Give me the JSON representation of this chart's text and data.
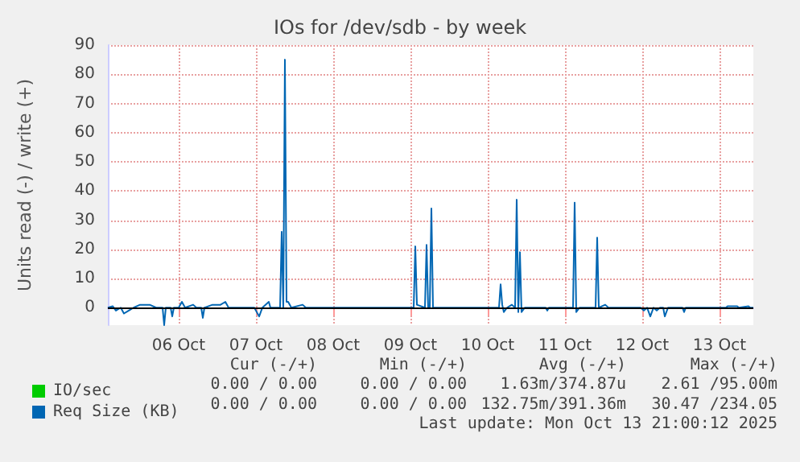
{
  "chart_data": {
    "type": "line",
    "title": "IOs for /dev/sdb - by week",
    "ylabel": "Units read (-) / write (+)",
    "xlim": [
      "2025-10-05T14:00",
      "2025-10-13T22:30"
    ],
    "xticks": [
      {
        "value": "2025-10-06T12:00",
        "label": "06 Oct"
      },
      {
        "value": "2025-10-07T12:00",
        "label": "07 Oct"
      },
      {
        "value": "2025-10-08T12:00",
        "label": "08 Oct"
      },
      {
        "value": "2025-10-09T12:00",
        "label": "09 Oct"
      },
      {
        "value": "2025-10-10T12:00",
        "label": "10 Oct"
      },
      {
        "value": "2025-10-11T12:00",
        "label": "11 Oct"
      },
      {
        "value": "2025-10-12T12:00",
        "label": "12 Oct"
      },
      {
        "value": "2025-10-13T12:00",
        "label": "13 Oct"
      }
    ],
    "ylim": [
      -6,
      90
    ],
    "yticks": [
      0,
      10,
      20,
      30,
      40,
      50,
      60,
      70,
      80,
      90
    ],
    "grid": true,
    "legend": "bottom left",
    "marker": "none",
    "line_style": "solid",
    "ref_lines": [
      {
        "axis": "y",
        "value": 0,
        "color": "#000000"
      }
    ],
    "series": [
      {
        "name": "IO/sec",
        "color": "#00cc00",
        "type": "line"
      },
      {
        "name": "Req Size (KB)",
        "color": "#0066b3",
        "x": [
          "2025-10-05T14:00",
          "2025-10-05T15:30",
          "2025-10-05T16:30",
          "2025-10-05T18:00",
          "2025-10-05T19:00",
          "2025-10-05T20:30",
          "2025-10-05T22:00",
          "2025-10-06T00:00",
          "2025-10-06T03:00",
          "2025-10-06T05:00",
          "2025-10-06T07:00",
          "2025-10-06T07:30",
          "2025-10-06T08:00",
          "2025-10-06T09:30",
          "2025-10-06T10:00",
          "2025-10-06T10:30",
          "2025-10-06T12:00",
          "2025-10-06T13:00",
          "2025-10-06T14:00",
          "2025-10-06T16:30",
          "2025-10-06T17:30",
          "2025-10-06T19:00",
          "2025-10-06T19:30",
          "2025-10-06T20:00",
          "2025-10-06T22:30",
          "2025-10-07T01:00",
          "2025-10-07T02:30",
          "2025-10-07T03:30",
          "2025-10-07T11:30",
          "2025-10-07T13:00",
          "2025-10-07T14:00",
          "2025-10-07T16:00",
          "2025-10-07T16:30",
          "2025-10-07T19:30",
          "2025-10-07T20:00",
          "2025-10-07T20:30",
          "2025-10-07T21:00",
          "2025-10-07T21:30",
          "2025-10-07T22:00",
          "2025-10-07T23:00",
          "2025-10-08T02:30",
          "2025-10-08T03:30",
          "2025-10-09T13:00",
          "2025-10-09T13:30",
          "2025-10-09T14:00",
          "2025-10-09T16:30",
          "2025-10-09T17:00",
          "2025-10-09T17:30",
          "2025-10-09T18:00",
          "2025-10-09T18:30",
          "2025-10-09T19:00",
          "2025-10-10T15:30",
          "2025-10-10T16:00",
          "2025-10-10T16:30",
          "2025-10-10T17:00",
          "2025-10-10T18:00",
          "2025-10-10T19:30",
          "2025-10-10T20:30",
          "2025-10-10T21:00",
          "2025-10-10T21:30",
          "2025-10-10T22:00",
          "2025-10-10T22:30",
          "2025-10-10T23:30",
          "2025-10-11T06:00",
          "2025-10-11T06:30",
          "2025-10-11T07:00",
          "2025-10-11T14:30",
          "2025-10-11T15:00",
          "2025-10-11T15:30",
          "2025-10-11T16:30",
          "2025-10-11T21:30",
          "2025-10-11T22:00",
          "2025-10-11T22:30",
          "2025-10-12T00:30",
          "2025-10-12T01:30",
          "2025-10-12T11:30",
          "2025-10-12T12:30",
          "2025-10-12T13:30",
          "2025-10-12T14:30",
          "2025-10-12T15:30",
          "2025-10-12T16:30",
          "2025-10-12T17:30",
          "2025-10-12T18:30",
          "2025-10-12T19:00",
          "2025-10-12T20:00",
          "2025-10-13T00:30",
          "2025-10-13T01:00",
          "2025-10-13T01:30",
          "2025-10-13T14:00",
          "2025-10-13T14:30",
          "2025-10-13T17:30",
          "2025-10-13T18:00",
          "2025-10-13T21:00",
          "2025-10-13T21:30",
          "2025-10-13T22:30"
        ],
        "values": [
          0,
          0.5,
          -1,
          0,
          -2,
          -1,
          0,
          1,
          1,
          0,
          0,
          -6,
          0,
          0,
          -3,
          0,
          0,
          2,
          0,
          1,
          0,
          0,
          -3.5,
          0,
          1,
          1,
          2,
          0,
          0,
          -3,
          0,
          2,
          0,
          0,
          26,
          0,
          85,
          2,
          2,
          0,
          1,
          0,
          0,
          21,
          1,
          0,
          21.5,
          0,
          0,
          34,
          0,
          0,
          8,
          1,
          -1.5,
          0,
          1,
          0,
          37,
          -1.5,
          19,
          -1.5,
          0,
          0,
          -1,
          0,
          0,
          36,
          -1.5,
          0,
          0,
          24,
          0,
          1,
          0,
          0,
          -1,
          0,
          -3,
          0,
          -1,
          0,
          0,
          -3,
          0,
          0,
          -1.5,
          0,
          0,
          0.5,
          0.5,
          0,
          0.5,
          0,
          0
        ]
      }
    ],
    "annotations": [
      "Cur (-/+)",
      "Min (-/+)",
      "Avg (-/+)",
      "Max (-/+)",
      "0.00 / 0.00",
      "0.00 / 0.00",
      "1.63m/374.87u",
      "2.61 /95.00m",
      "0.00 / 0.00",
      "0.00 / 0.00",
      "132.75m/391.36m",
      "30.47 /234.05",
      "Last update: Mon Oct 13 21:00:12 2025"
    ]
  }
}
